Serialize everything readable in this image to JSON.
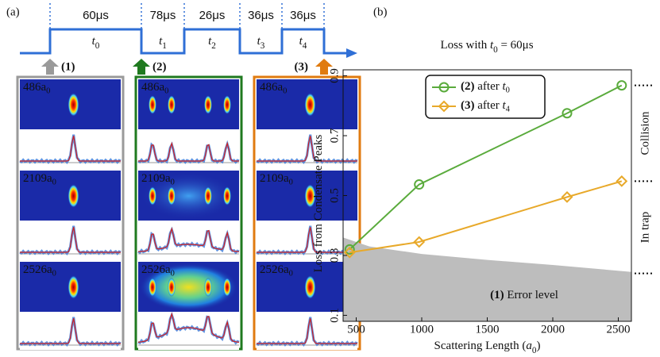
{
  "panel_a": {
    "label": "(a)",
    "durations": [
      "60μs",
      "78μs",
      "26μs",
      "36μs",
      "36μs"
    ],
    "segments": [
      [
        {
          "text": "t",
          "style": "italic"
        },
        {
          "text": "0",
          "style": "sub"
        }
      ],
      [
        {
          "text": "t",
          "style": "italic"
        },
        {
          "text": "1",
          "style": "sub"
        }
      ],
      [
        {
          "text": "t",
          "style": "italic"
        },
        {
          "text": "2",
          "style": "sub"
        }
      ],
      [
        {
          "text": "t",
          "style": "italic"
        },
        {
          "text": "3",
          "style": "sub"
        }
      ],
      [
        {
          "text": "t",
          "style": "italic"
        },
        {
          "text": "4",
          "style": "sub"
        }
      ]
    ],
    "stages": [
      {
        "label": "(1)",
        "color": "#9a9a9a"
      },
      {
        "label": "(2)",
        "color": "#1f7a1f"
      },
      {
        "label": "(3)",
        "color": "#e07b10"
      }
    ],
    "rows": [
      [
        {
          "text": "486"
        },
        {
          "text": "a"
        },
        {
          "text": "0",
          "style": "sub"
        }
      ],
      [
        {
          "text": "2109"
        },
        {
          "text": "a"
        },
        {
          "text": "0",
          "style": "sub"
        }
      ],
      [
        {
          "text": "2526"
        },
        {
          "text": "a"
        },
        {
          "text": "0",
          "style": "sub"
        }
      ]
    ]
  },
  "chart_data": {
    "type": "line",
    "panel_label": "(b)",
    "title": [
      {
        "text": "Loss with "
      },
      {
        "text": "t",
        "style": "italic"
      },
      {
        "text": "0",
        "style": "sub"
      },
      {
        "text": " = 60μs"
      }
    ],
    "xlabel": [
      {
        "text": "Scattering Length ("
      },
      {
        "text": "a",
        "style": "italic"
      },
      {
        "text": "0",
        "style": "sub"
      },
      {
        "text": ")"
      }
    ],
    "ylabel": [
      {
        "text": "Loss from Condensate Peaks"
      }
    ],
    "xlim": [
      400,
      2600
    ],
    "ylim": [
      0.08,
      0.92
    ],
    "xticks": [
      500,
      1000,
      1500,
      2000,
      2500
    ],
    "yticks": [
      0.1,
      0.3,
      0.5,
      0.7,
      0.9
    ],
    "series": [
      {
        "name": [
          {
            "text": "(2)",
            "style": "bold"
          },
          {
            "text": " after "
          },
          {
            "text": "t",
            "style": "italic"
          },
          {
            "text": "0",
            "style": "sub"
          }
        ],
        "color": "#5aab3c",
        "marker": "circle",
        "x": [
          450,
          980,
          2109,
          2526
        ],
        "values": [
          0.32,
          0.537,
          0.775,
          0.868
        ]
      },
      {
        "name": [
          {
            "text": "(3)",
            "style": "bold"
          },
          {
            "text": " after "
          },
          {
            "text": "t",
            "style": "italic"
          },
          {
            "text": "4",
            "style": "sub"
          }
        ],
        "color": "#e8a92a",
        "marker": "diamond",
        "x": [
          450,
          980,
          2109,
          2526
        ],
        "values": [
          0.31,
          0.345,
          0.495,
          0.548
        ]
      }
    ],
    "error_level": {
      "label": [
        {
          "text": "(1)",
          "style": "bold"
        },
        {
          "text": " Error level"
        }
      ],
      "color": "#bdbdbd",
      "x": [
        400,
        600,
        1000,
        1500,
        2000,
        2600
      ],
      "values": [
        0.36,
        0.33,
        0.305,
        0.285,
        0.268,
        0.245
      ]
    },
    "right_markers": [
      0.868,
      0.548,
      0.24
    ],
    "right_labels": [
      "Collision",
      "In trap"
    ]
  }
}
